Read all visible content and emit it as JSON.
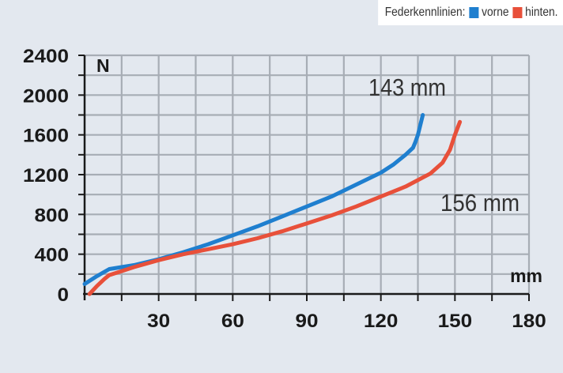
{
  "chart_data": {
    "type": "line",
    "xlim": [
      0,
      180
    ],
    "ylim": [
      0,
      2400
    ],
    "x_ticks": [
      30,
      60,
      90,
      120,
      150,
      180
    ],
    "y_ticks": [
      0,
      400,
      800,
      1200,
      1600,
      2000,
      2400
    ],
    "x_unit": "mm",
    "y_unit": "N",
    "grid": true,
    "legend": {
      "title": "Federkennlinien:",
      "position": "top-right",
      "entries": [
        "vorne",
        "hinten."
      ]
    },
    "series": [
      {
        "name": "vorne",
        "color": "#1f7fcf",
        "x": [
          0,
          5,
          10,
          20,
          30,
          40,
          50,
          60,
          70,
          80,
          90,
          100,
          110,
          120,
          125,
          130,
          133,
          134,
          135,
          136,
          137
        ],
        "y": [
          100,
          180,
          250,
          290,
          350,
          420,
          500,
          590,
          680,
          780,
          880,
          980,
          1100,
          1220,
          1300,
          1400,
          1470,
          1530,
          1600,
          1700,
          1800
        ]
      },
      {
        "name": "hinten.",
        "color": "#e8503a",
        "x": [
          2,
          5,
          8,
          10,
          15,
          20,
          30,
          40,
          50,
          60,
          70,
          80,
          90,
          100,
          110,
          120,
          130,
          140,
          145,
          148,
          150,
          152
        ],
        "y": [
          0,
          80,
          150,
          190,
          230,
          270,
          340,
          400,
          450,
          500,
          560,
          630,
          710,
          790,
          880,
          980,
          1080,
          1210,
          1320,
          1450,
          1600,
          1730
        ]
      }
    ],
    "annotations": [
      {
        "text": "143 mm",
        "series": "vorne"
      },
      {
        "text": "156 mm",
        "series": "hinten."
      }
    ]
  }
}
